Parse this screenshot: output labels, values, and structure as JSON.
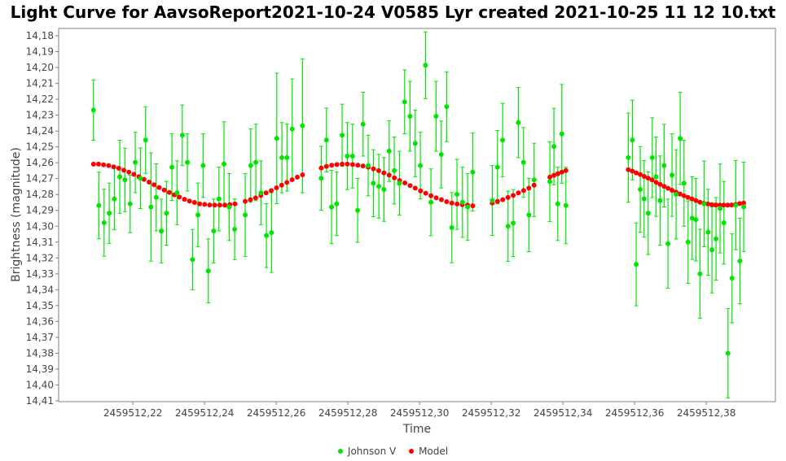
{
  "colors": {
    "observed": "#00e600",
    "model": "#ff0000",
    "axis": "#808080"
  },
  "chart_data": {
    "type": "scatter",
    "title": "Light Curve for AavsoReport2021-10-24 V0585 Lyr created 2021-10-25 11 12 10.txt",
    "xlabel": "Time",
    "ylabel": "Brightness (magnitude)",
    "x_offset": 2459512,
    "xlim": [
      0.1993,
      0.3993
    ],
    "ylim": [
      14.1754,
      14.4105
    ],
    "y_inverted": true,
    "grid": false,
    "legend_position": "bottom-center",
    "x_ticks": [
      0.22,
      0.24,
      0.26,
      0.28,
      0.3,
      0.32,
      0.34,
      0.36,
      0.38
    ],
    "x_tick_labels": [
      "2459512,22",
      "2459512,24",
      "2459512,26",
      "2459512,28",
      "2459512,30",
      "2459512,32",
      "2459512,34",
      "2459512,36",
      "2459512,38"
    ],
    "y_ticks": [
      14.18,
      14.19,
      14.2,
      14.21,
      14.22,
      14.23,
      14.24,
      14.25,
      14.26,
      14.27,
      14.28,
      14.29,
      14.3,
      14.31,
      14.32,
      14.33,
      14.34,
      14.35,
      14.36,
      14.37,
      14.38,
      14.39,
      14.4,
      14.41
    ],
    "y_tick_labels": [
      "14,18",
      "14,19",
      "14,20",
      "14,21",
      "14,22",
      "14,23",
      "14,24",
      "14,25",
      "14,26",
      "14,27",
      "14,28",
      "14,29",
      "14,30",
      "14,31",
      "14,32",
      "14,33",
      "14,34",
      "14,35",
      "14,36",
      "14,37",
      "14,38",
      "14,39",
      "14,40",
      "14,41"
    ],
    "legend": [
      "Johnson V",
      "Model"
    ],
    "series": [
      {
        "name": "Johnson V",
        "kind": "errorbar",
        "points_x_mag_err": [
          [
            0.20902,
            14.2268,
            0.019
          ],
          [
            0.21052,
            14.2869,
            0.021
          ],
          [
            0.21198,
            14.2978,
            0.0211
          ],
          [
            0.21341,
            14.2918,
            0.019
          ],
          [
            0.21484,
            14.2828,
            0.0193
          ],
          [
            0.21636,
            14.2688,
            0.023
          ],
          [
            0.2178,
            14.2708,
            0.02
          ],
          [
            0.21925,
            14.2859,
            0.0181
          ],
          [
            0.22068,
            14.2598,
            0.019
          ],
          [
            0.22211,
            14.2698,
            0.0191
          ],
          [
            0.22357,
            14.2457,
            0.021
          ],
          [
            0.22507,
            14.2879,
            0.0341
          ],
          [
            0.22652,
            14.2818,
            0.0211
          ],
          [
            0.22795,
            14.303,
            0.0201
          ],
          [
            0.22939,
            14.2918,
            0.0201
          ],
          [
            0.23091,
            14.2628,
            0.021
          ],
          [
            0.23234,
            14.2789,
            0.0201
          ],
          [
            0.2338,
            14.2427,
            0.0191
          ],
          [
            0.23523,
            14.2598,
            0.018
          ],
          [
            0.23666,
            14.321,
            0.019
          ],
          [
            0.23818,
            14.2929,
            0.0201
          ],
          [
            0.23961,
            14.2618,
            0.02
          ],
          [
            0.24107,
            14.3281,
            0.0201
          ],
          [
            0.24257,
            14.303,
            0.0201
          ],
          [
            0.24402,
            14.2828,
            0.0201
          ],
          [
            0.24545,
            14.2608,
            0.0266
          ],
          [
            0.24689,
            14.2879,
            0.0211
          ],
          [
            0.24841,
            14.3019,
            0.0191
          ],
          [
            0.25136,
            14.2929,
            0.0261
          ],
          [
            0.25289,
            14.2618,
            0.0231
          ],
          [
            0.25432,
            14.2598,
            0.0241
          ],
          [
            0.25575,
            14.2789,
            0.0201
          ],
          [
            0.25727,
            14.3059,
            0.0201
          ],
          [
            0.2587,
            14.304,
            0.0251
          ],
          [
            0.26016,
            14.2447,
            0.0411
          ],
          [
            0.26159,
            14.2568,
            0.0221
          ],
          [
            0.26302,
            14.2568,
            0.0211
          ],
          [
            0.26448,
            14.2388,
            0.0316
          ],
          [
            0.26734,
            14.2367,
            0.0422
          ],
          [
            0.27257,
            14.2698,
            0.0201
          ],
          [
            0.27402,
            14.2457,
            0.0201
          ],
          [
            0.27545,
            14.2879,
            0.0231
          ],
          [
            0.27689,
            14.2859,
            0.02
          ],
          [
            0.27841,
            14.2427,
            0.0196
          ],
          [
            0.27984,
            14.2558,
            0.0211
          ],
          [
            0.2813,
            14.2558,
            0.0201
          ],
          [
            0.28273,
            14.29,
            0.0201
          ],
          [
            0.28425,
            14.2357,
            0.0201
          ],
          [
            0.28568,
            14.2618,
            0.0191
          ],
          [
            0.28711,
            14.2729,
            0.0211
          ],
          [
            0.28864,
            14.2748,
            0.0201
          ],
          [
            0.29007,
            14.2768,
            0.0201
          ],
          [
            0.29152,
            14.2527,
            0.0191
          ],
          [
            0.29295,
            14.2649,
            0.0211
          ],
          [
            0.29439,
            14.2729,
            0.0201
          ],
          [
            0.29584,
            14.2216,
            0.0201
          ],
          [
            0.29734,
            14.2307,
            0.022
          ],
          [
            0.2988,
            14.2478,
            0.021
          ],
          [
            0.30023,
            14.2618,
            0.021
          ],
          [
            0.30166,
            14.1986,
            0.021
          ],
          [
            0.30318,
            14.2849,
            0.021
          ],
          [
            0.30461,
            14.2307,
            0.022
          ],
          [
            0.30607,
            14.2548,
            0.0211
          ],
          [
            0.30757,
            14.2247,
            0.022
          ],
          [
            0.30902,
            14.3009,
            0.0221
          ],
          [
            0.31045,
            14.2799,
            0.0221
          ],
          [
            0.31198,
            14.2849,
            0.0221
          ],
          [
            0.31341,
            14.2879,
            0.021
          ],
          [
            0.31484,
            14.2659,
            0.0246
          ],
          [
            0.3203,
            14.2838,
            0.022
          ],
          [
            0.32175,
            14.2628,
            0.0231
          ],
          [
            0.32318,
            14.2457,
            0.0231
          ],
          [
            0.3247,
            14.3,
            0.0221
          ],
          [
            0.32614,
            14.298,
            0.0211
          ],
          [
            0.32757,
            14.2347,
            0.0221
          ],
          [
            0.32902,
            14.2598,
            0.022
          ],
          [
            0.33052,
            14.2929,
            0.0231
          ],
          [
            0.33198,
            14.2708,
            0.0231
          ],
          [
            0.33636,
            14.2719,
            0.0251
          ],
          [
            0.3375,
            14.2498,
            0.0241
          ],
          [
            0.33857,
            14.2859,
            0.0231
          ],
          [
            0.3397,
            14.2418,
            0.0311
          ],
          [
            0.34084,
            14.2869,
            0.0241
          ],
          [
            0.35825,
            14.2568,
            0.0281
          ],
          [
            0.35939,
            14.2457,
            0.0251
          ],
          [
            0.36045,
            14.324,
            0.0261
          ],
          [
            0.36159,
            14.2768,
            0.027
          ],
          [
            0.36266,
            14.2828,
            0.0241
          ],
          [
            0.3638,
            14.2918,
            0.026
          ],
          [
            0.36493,
            14.2568,
            0.0251
          ],
          [
            0.36598,
            14.2688,
            0.025
          ],
          [
            0.36711,
            14.2838,
            0.0281
          ],
          [
            0.36825,
            14.2618,
            0.026
          ],
          [
            0.36932,
            14.311,
            0.0281
          ],
          [
            0.37045,
            14.2678,
            0.026
          ],
          [
            0.37159,
            14.2799,
            0.0281
          ],
          [
            0.37273,
            14.2447,
            0.029
          ],
          [
            0.3738,
            14.2729,
            0.0271
          ],
          [
            0.37493,
            14.31,
            0.026
          ],
          [
            0.37607,
            14.2949,
            0.026
          ],
          [
            0.37711,
            14.2959,
            0.026
          ],
          [
            0.37825,
            14.33,
            0.0281
          ],
          [
            0.37939,
            14.2859,
            0.027
          ],
          [
            0.38052,
            14.3038,
            0.0271
          ],
          [
            0.38159,
            14.3149,
            0.0271
          ],
          [
            0.38273,
            14.3079,
            0.026
          ],
          [
            0.38386,
            14.2888,
            0.028
          ],
          [
            0.38493,
            14.2978,
            0.026
          ],
          [
            0.38607,
            14.38,
            0.0281
          ],
          [
            0.3872,
            14.3328,
            0.028
          ],
          [
            0.38825,
            14.2867,
            0.0281
          ],
          [
            0.38939,
            14.3219,
            0.027
          ],
          [
            0.39045,
            14.2878,
            0.0281
          ]
        ]
      },
      {
        "name": "Model",
        "kind": "points",
        "segments": [
          {
            "t_start": 0.20902,
            "t_step": 0.00141,
            "mags": [
              14.2609,
              14.2609,
              14.2613,
              14.2618,
              14.2626,
              14.2635,
              14.2647,
              14.2659,
              14.2673,
              14.2688,
              14.2705,
              14.2722,
              14.2739,
              14.2756,
              14.2772,
              14.2787,
              14.2802,
              14.2816,
              14.283,
              14.2842,
              14.285,
              14.2859,
              14.2862,
              14.2866,
              14.2867,
              14.2867,
              14.2867,
              14.2864,
              14.2859
            ]
          },
          {
            "t_start": 0.25136,
            "t_step": 0.001454,
            "mags": [
              14.2843,
              14.2833,
              14.2821,
              14.2806,
              14.279,
              14.2775,
              14.2758,
              14.2741,
              14.2724,
              14.2707,
              14.2691,
              14.2676
            ]
          },
          {
            "t_start": 0.27257,
            "t_step": 0.001458,
            "mags": [
              14.2633,
              14.2623,
              14.2616,
              14.2611,
              14.2609,
              14.2609,
              14.2611,
              14.2615,
              14.262,
              14.2628,
              14.2638,
              14.265,
              14.2664,
              14.2678,
              14.2695,
              14.2712,
              14.2727,
              14.2744,
              14.276,
              14.2777,
              14.2792,
              14.2808,
              14.2821,
              14.2833,
              14.2845,
              14.2854,
              14.286,
              14.2864,
              14.2867,
              14.2871
            ]
          },
          {
            "t_start": 0.3203,
            "t_step": 0.001458,
            "mags": [
              14.2854,
              14.2843,
              14.2833,
              14.2819,
              14.2806,
              14.279,
              14.2775,
              14.276,
              14.2741
            ]
          },
          {
            "t_start": 0.33636,
            "t_step": 0.001117,
            "mags": [
              14.2691,
              14.2679,
              14.2669,
              14.2659,
              14.2649
            ]
          },
          {
            "t_start": 0.35825,
            "t_step": 0.00111,
            "mags": [
              14.2644,
              14.2652,
              14.2664,
              14.2674,
              14.2686,
              14.2697,
              14.2708,
              14.2724,
              14.2736,
              14.2749,
              14.2761,
              14.2773,
              14.2785,
              14.2797,
              14.2808,
              14.2818,
              14.2828,
              14.2838,
              14.2849,
              14.2855,
              14.286,
              14.2864,
              14.2866,
              14.2867,
              14.2867,
              14.2867,
              14.2866,
              14.2862,
              14.2857,
              14.2854
            ]
          }
        ]
      }
    ]
  }
}
